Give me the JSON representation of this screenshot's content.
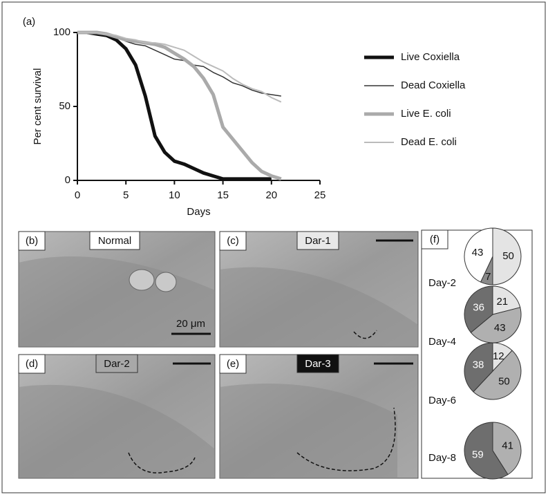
{
  "chart_data": [
    {
      "type": "line",
      "panel_label": "(a)",
      "x_label": "Days",
      "y_label": "Per cent survival",
      "xlim": [
        0,
        25
      ],
      "xticks": [
        0,
        5,
        10,
        15,
        20,
        25
      ],
      "ylim": [
        0,
        100
      ],
      "yticks": [
        0,
        50,
        100
      ],
      "x": [
        0,
        1,
        2,
        3,
        4,
        5,
        6,
        7,
        8,
        9,
        10,
        11,
        12,
        13,
        14,
        15,
        16,
        17,
        18,
        19,
        20,
        21
      ],
      "series": [
        {
          "name": "Live Coxiella",
          "color": "#111111",
          "width": 5,
          "values": [
            100,
            100,
            99,
            98,
            95,
            89,
            78,
            57,
            30,
            19,
            13,
            11,
            8,
            5,
            3,
            1,
            1,
            1,
            1,
            1,
            1,
            null
          ]
        },
        {
          "name": "Dead Coxiella",
          "color": "#333333",
          "width": 1.5,
          "values": [
            100,
            100,
            100,
            99,
            97,
            94,
            92,
            91,
            88,
            85,
            82,
            81,
            78,
            77,
            73,
            70,
            66,
            64,
            61,
            59,
            58,
            57
          ]
        },
        {
          "name": "Live E. coli",
          "color": "#aaaaaa",
          "width": 5,
          "values": [
            100,
            100,
            100,
            99,
            97,
            95,
            94,
            93,
            92,
            90,
            86,
            82,
            77,
            69,
            58,
            36,
            28,
            20,
            12,
            6,
            3,
            1
          ]
        },
        {
          "name": "Dead E. coli",
          "color": "#bbbbbb",
          "width": 2,
          "values": [
            100,
            100,
            100,
            99,
            98,
            96,
            95,
            93,
            93,
            92,
            90,
            88,
            84,
            80,
            77,
            74,
            69,
            65,
            62,
            60,
            56,
            53
          ]
        }
      ]
    },
    {
      "type": "pie",
      "title": "Day-2",
      "values": [
        50,
        7,
        43
      ],
      "colors": [
        "#e4e4e4",
        "#8a8a8a",
        "#ffffff"
      ]
    },
    {
      "type": "pie",
      "title": "Day-4",
      "values": [
        21,
        43,
        36
      ],
      "colors": [
        "#e4e4e4",
        "#b0b0b0",
        "#6e6e6e"
      ]
    },
    {
      "type": "pie",
      "title": "Day-6",
      "values": [
        12,
        50,
        38
      ],
      "colors": [
        "#e4e4e4",
        "#b0b0b0",
        "#6e6e6e"
      ]
    },
    {
      "type": "pie",
      "title": "Day-8",
      "values": [
        41,
        59
      ],
      "colors": [
        "#b0b0b0",
        "#6e6e6e"
      ]
    }
  ],
  "panels": {
    "b": {
      "label": "(b)",
      "caption": "Normal",
      "scale_bar": "20 μm"
    },
    "c": {
      "label": "(c)",
      "caption": "Dar-1"
    },
    "d": {
      "label": "(d)",
      "caption": "Dar-2"
    },
    "e": {
      "label": "(e)",
      "caption": "Dar-3"
    },
    "f": {
      "label": "(f)"
    }
  }
}
